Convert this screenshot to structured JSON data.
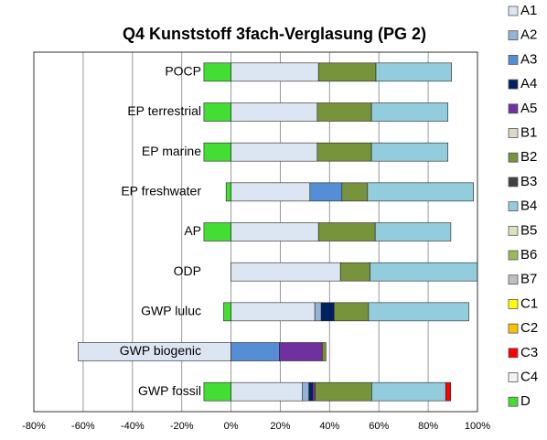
{
  "chart_data": {
    "type": "stacked-barh",
    "title": "Q4 Kunststoff 3fach-Verglasung (PG 2)",
    "categories": [
      "POCP",
      "EP terrestrial",
      "EP marine",
      "EP freshwater",
      "AP",
      "ODP",
      "GWP luluc",
      "GWP biogenic",
      "GWP fossil"
    ],
    "series": [
      {
        "name": "A1",
        "color": "#dce6f2",
        "values": [
          35.5,
          35,
          35,
          32,
          35.5,
          44.4,
          34,
          -62,
          29
        ]
      },
      {
        "name": "A2",
        "color": "#95b3d7",
        "values": [
          0,
          0,
          0,
          0,
          0,
          0,
          2.6,
          0,
          2.6
        ]
      },
      {
        "name": "A3",
        "color": "#558ed5",
        "values": [
          0,
          0,
          0,
          13,
          0,
          0,
          0,
          19.6,
          0
        ]
      },
      {
        "name": "A4",
        "color": "#002060",
        "values": [
          0,
          0,
          0,
          0,
          0,
          0,
          5.2,
          0,
          1.5
        ]
      },
      {
        "name": "A5",
        "color": "#7030a0",
        "values": [
          0,
          0,
          0,
          0,
          0,
          0,
          0,
          17.4,
          1
        ]
      },
      {
        "name": "B1",
        "color": "#ddd9c4",
        "values": [
          0,
          0,
          0,
          0,
          0,
          0,
          0,
          0,
          0
        ]
      },
      {
        "name": "B2",
        "color": "#77933c",
        "values": [
          23.3,
          22,
          22,
          10.4,
          23,
          12,
          14,
          1.5,
          23
        ]
      },
      {
        "name": "B3",
        "color": "#404040",
        "values": [
          0,
          0,
          0,
          0,
          0,
          0,
          0,
          0,
          0
        ]
      },
      {
        "name": "B4",
        "color": "#93cddd",
        "values": [
          30.7,
          31,
          31,
          43,
          30.7,
          47,
          40.7,
          0,
          30
        ]
      },
      {
        "name": "B5",
        "color": "#d7e4bd",
        "values": [
          0,
          0,
          0,
          0,
          0,
          0,
          0,
          0,
          0
        ]
      },
      {
        "name": "B6",
        "color": "#9bbb59",
        "values": [
          0,
          0,
          0,
          0,
          0,
          0,
          0,
          0,
          0
        ]
      },
      {
        "name": "B7",
        "color": "#bfbfbf",
        "values": [
          0,
          0,
          0,
          0,
          0,
          0,
          0,
          0,
          0
        ]
      },
      {
        "name": "C1",
        "color": "#ffff00",
        "values": [
          0,
          0,
          0,
          0,
          0,
          0,
          0,
          0,
          0
        ]
      },
      {
        "name": "C2",
        "color": "#ffc000",
        "values": [
          0,
          0,
          0,
          0,
          0,
          0,
          0,
          0,
          0
        ]
      },
      {
        "name": "C3",
        "color": "#ff0000",
        "values": [
          0,
          0,
          0,
          0,
          0,
          0,
          0,
          0,
          2
        ]
      },
      {
        "name": "C4",
        "color": "#f2f2f2",
        "values": [
          0,
          0,
          0,
          0,
          0,
          0,
          0,
          0,
          0
        ]
      },
      {
        "name": "D",
        "color": "#44dd33",
        "values": [
          -11,
          -11,
          -11,
          -2,
          -11,
          0,
          -3,
          0,
          -11
        ]
      }
    ],
    "xlim": [
      -80,
      100
    ],
    "xticks": [
      {
        "value": -80,
        "label": "-80%"
      },
      {
        "value": -60,
        "label": "-60%"
      },
      {
        "value": -40,
        "label": "-40%"
      },
      {
        "value": -20,
        "label": "-20%"
      },
      {
        "value": 0,
        "label": "0%"
      },
      {
        "value": 20,
        "label": "20%"
      },
      {
        "value": 40,
        "label": "40%"
      },
      {
        "value": 60,
        "label": "60%"
      },
      {
        "value": 80,
        "label": "80%"
      },
      {
        "value": 100,
        "label": "100%"
      }
    ],
    "grid": true,
    "legend": "right"
  }
}
